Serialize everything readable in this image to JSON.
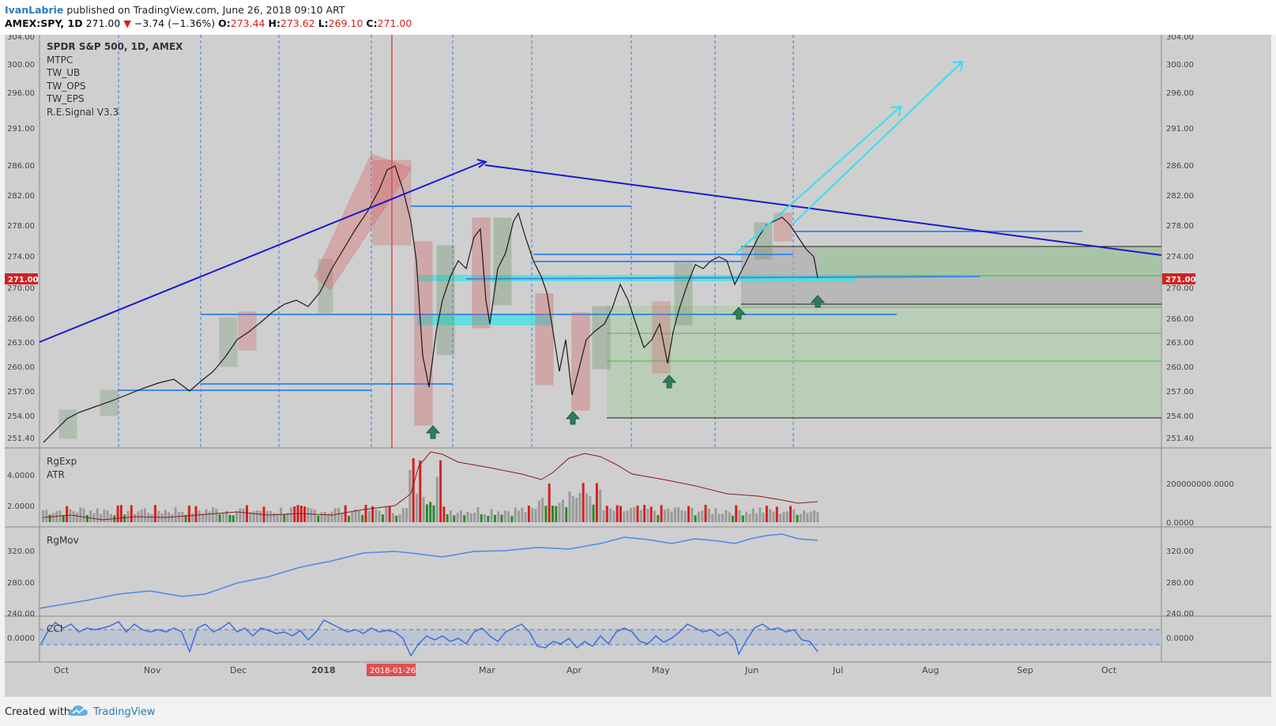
{
  "header": {
    "author": "IvanLabrie",
    "published_text": "published on TradingView.com, June 26, 2018 09:10 ART",
    "symbol": "AMEX:SPY, 1D",
    "last": "271.00",
    "change": "−3.74 (−1.36%)",
    "open_label": "O:",
    "open": "273.44",
    "high_label": "H:",
    "high": "273.62",
    "low_label": "L:",
    "low": "269.10",
    "close_label": "C:",
    "close": "271.00"
  },
  "main_pane": {
    "legend": [
      "SPDR S&P 500, 1D, AMEX",
      "MTPC",
      "TW_UB",
      "TW_OPS",
      "TW_EPS",
      "R.E.Signal V3.3"
    ],
    "price_axis": [
      "304.00",
      "300.00",
      "296.00",
      "291.00",
      "286.00",
      "282.00",
      "278.00",
      "274.00",
      "270.00",
      "266.00",
      "263.00",
      "260.00",
      "257.00",
      "254.00",
      "251.40"
    ],
    "last_price_tag": "271.00"
  },
  "rgexp_pane": {
    "labels": [
      "RgExp",
      "ATR"
    ],
    "left_axis": [
      "4.0000",
      "2.0000"
    ],
    "right_axis": [
      "200000000.0000",
      "0.0000"
    ]
  },
  "rgmov_pane": {
    "label": "RgMov",
    "axis": [
      "320.00",
      "280.00",
      "240.00"
    ]
  },
  "cci_pane": {
    "label": "CCI",
    "axis": [
      "0.0000"
    ]
  },
  "time_axis": {
    "labels": [
      "Oct",
      "Nov",
      "Dec",
      "2018",
      "Mar",
      "Apr",
      "May",
      "Jun",
      "Jul",
      "Aug",
      "Sep",
      "Oct"
    ],
    "highlight": "2018-01-26"
  },
  "footer": {
    "created_text": "Created with",
    "brand": "TradingView"
  },
  "colors": {
    "background": "#cfcfcf",
    "bull": "#2a8a2a",
    "bear": "#d62020",
    "trend_line": "#1a1acf",
    "projection": "#33e0f0",
    "level": "#3b8cf0"
  }
}
